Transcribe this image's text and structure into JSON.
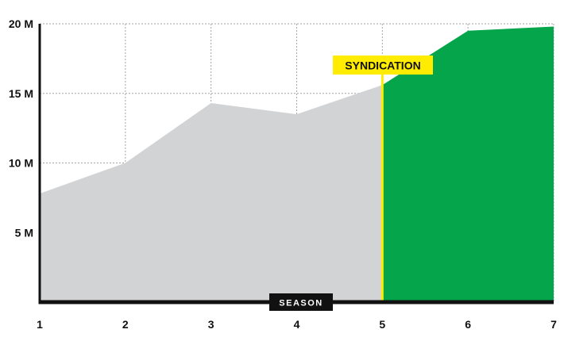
{
  "chart_data": {
    "type": "area",
    "xlabel": "SEASON",
    "ylabel": "",
    "x": [
      1,
      2,
      3,
      4,
      5,
      6,
      7
    ],
    "xlim": [
      1,
      7
    ],
    "ylim": [
      0,
      20
    ],
    "x_tick_labels": [
      "1",
      "2",
      "3",
      "4",
      "5",
      "6",
      "7"
    ],
    "y_ticks": [
      5,
      10,
      15,
      20
    ],
    "y_tick_labels": [
      "5 M",
      "10 M",
      "15 M",
      "20 M"
    ],
    "grid": true,
    "series": [
      {
        "x": [
          1,
          2,
          3,
          4,
          5
        ],
        "values": [
          7.8,
          10.0,
          14.3,
          13.5,
          15.6
        ],
        "color": "#d2d3d5"
      },
      {
        "x": [
          5,
          6,
          7
        ],
        "values": [
          15.6,
          19.5,
          19.8
        ],
        "color": "#05a54b"
      }
    ],
    "annotations": [
      {
        "text": "SYNDICATION",
        "x": 5,
        "line_color": "#ffec00",
        "label_background": "#ffec00"
      }
    ],
    "colors": {
      "axis": "#111111",
      "grid": "#a6a6a6",
      "xlabel_background": "#111111"
    }
  }
}
